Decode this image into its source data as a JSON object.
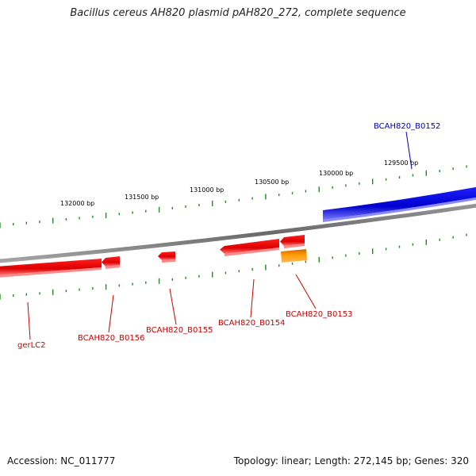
{
  "title": "Bacillus cereus AH820 plasmid pAH820_272, complete sequence",
  "footer": {
    "accession": "Accession: NC_011777",
    "summary": "Topology: linear; Length: 272,145 bp; Genes: 320"
  },
  "colors": {
    "forward_gene": "#0000dd",
    "reverse_gene": "#ee0000",
    "orange_feature": "#ff9900",
    "backbone": "#808080",
    "tick": "#228822"
  },
  "ruler_labels": [
    "132000 bp",
    "131500 bp",
    "131000 bp",
    "130500 bp",
    "130000 bp",
    "129500 bp"
  ],
  "genes": [
    {
      "name": "BCAH820_B0152",
      "strand": "forward",
      "color": "#0000dd"
    },
    {
      "name": "BCAH820_B0153",
      "strand": "reverse",
      "color": "#cc0000"
    },
    {
      "name": "BCAH820_B0154",
      "strand": "reverse",
      "color": "#cc0000"
    },
    {
      "name": "BCAH820_B0155",
      "strand": "reverse",
      "color": "#cc0000"
    },
    {
      "name": "BCAH820_B0156",
      "strand": "reverse",
      "color": "#cc0000"
    },
    {
      "name": "gerLC2",
      "strand": "reverse",
      "color": "#cc0000"
    }
  ]
}
